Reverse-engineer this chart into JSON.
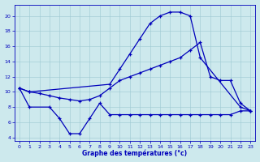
{
  "bg_color": "#cde9ed",
  "grid_color": "#9cc8d2",
  "line_color": "#0000bb",
  "xlabel": "Graphe des températures (°c)",
  "ylim": [
    3.5,
    21.5
  ],
  "xlim": [
    -0.5,
    23.5
  ],
  "yticks": [
    4,
    6,
    8,
    10,
    12,
    14,
    16,
    18,
    20
  ],
  "curve_top_x": [
    0,
    1,
    9,
    10,
    11,
    12,
    13,
    14,
    15,
    16,
    17,
    18,
    22,
    23
  ],
  "curve_top_y": [
    10.5,
    10.0,
    11.0,
    13.0,
    15.0,
    17.0,
    19.0,
    20.0,
    20.5,
    20.5,
    20.0,
    14.5,
    8.0,
    7.5
  ],
  "curve_mid_x": [
    0,
    1,
    2,
    3,
    4,
    5,
    6,
    7,
    8,
    9,
    10,
    11,
    12,
    13,
    14,
    15,
    16,
    17,
    18,
    19,
    20,
    21,
    22,
    23
  ],
  "curve_mid_y": [
    10.5,
    10.0,
    9.8,
    9.5,
    9.2,
    9.0,
    8.8,
    9.0,
    9.5,
    10.5,
    11.5,
    12.0,
    12.5,
    13.0,
    13.5,
    14.0,
    14.5,
    15.5,
    16.5,
    12.0,
    11.5,
    11.5,
    8.5,
    7.5
  ],
  "curve_bot_x": [
    0,
    1,
    3,
    4,
    5,
    6,
    7,
    8,
    9,
    10,
    11,
    12,
    13,
    14,
    15,
    16,
    17,
    18,
    19,
    20,
    21,
    22,
    23
  ],
  "curve_bot_y": [
    10.5,
    8.0,
    8.0,
    6.5,
    4.5,
    4.5,
    6.5,
    8.5,
    7.0,
    7.0,
    7.0,
    7.0,
    7.0,
    7.0,
    7.0,
    7.0,
    7.0,
    7.0,
    7.0,
    7.0,
    7.0,
    7.5,
    7.5
  ]
}
